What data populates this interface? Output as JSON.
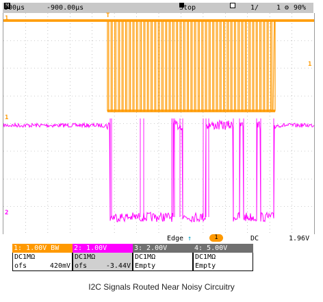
{
  "header": {
    "m_icon": "M",
    "timebase": "500µs",
    "delay": "-900.00µs",
    "run_state": "Stop",
    "acq": "1/",
    "count": "1",
    "level": "90%",
    "icons": [
      "m-icon",
      "stop-square-icon",
      "acquire-icon",
      "gear-icon"
    ]
  },
  "markers": {
    "ch1_ref": "1",
    "ch1_trig_level": "1",
    "ch2_ref": "2",
    "trigger_pos": "T"
  },
  "status": {
    "trigger_type": "Edge",
    "trigger_source": "1",
    "coupling": "DC",
    "trigger_level": "1.96V"
  },
  "channels": [
    {
      "header": "1: 1.00V  BW",
      "coupling": "DC1MΩ",
      "offset_label": "ofs",
      "offset_value": "420mV",
      "color": "#ff9900"
    },
    {
      "header": "2: 1.00V",
      "coupling": "DC1MΩ",
      "offset_label": "ofs",
      "offset_value": "-3.44V",
      "color": "#ff00ff"
    },
    {
      "header": "3: 2.00V",
      "coupling": "DC1MΩ",
      "offset_label": "Empty",
      "offset_value": "",
      "color": "#707070"
    },
    {
      "header": "4: 5.00V",
      "coupling": "DC1MΩ",
      "offset_label": "Empty",
      "offset_value": "",
      "color": "#707070"
    }
  ],
  "caption": "I2C Signals Routed Near Noisy Circuitry",
  "colors": {
    "ch1": "#ff9900",
    "ch2": "#ff00ff",
    "grid": "#9a9a9a",
    "inactive_channel": "#707070"
  }
}
